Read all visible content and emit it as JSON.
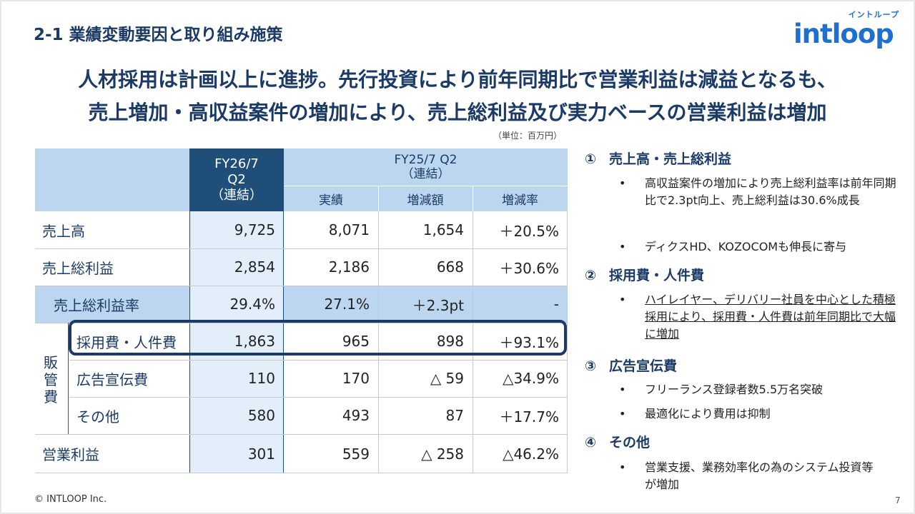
{
  "section_title": "2-1 業績変動要因と取り組み施策",
  "logo": {
    "kana": "イントループ",
    "word": "intloop",
    "color": "#1f6fd1"
  },
  "headline": {
    "line1": "人材採用は計画以上に進捗。先行投資により前年同期比で営業利益は減益となるも、",
    "line2": "売上増加・高収益案件の増加により、売上総利益及び実力ベースの営業利益は増加"
  },
  "unit_note": "（単位：百万円）",
  "table": {
    "fy26_header": {
      "line1": "FY26/7",
      "line2": "Q2",
      "line3": "（連結）"
    },
    "fy25_header": {
      "line1": "FY25/7 Q2",
      "line2": "（連結）"
    },
    "sub_headers": [
      "実績",
      "増減額",
      "増減率"
    ],
    "sga_group_label": "販管費",
    "rows": [
      {
        "label": "売上高",
        "fy26": "9,725",
        "actual": "8,071",
        "diff": "1,654",
        "rate": "＋20.5%"
      },
      {
        "label": "売上総利益",
        "fy26": "2,854",
        "actual": "2,186",
        "diff": "668",
        "rate": "＋30.6%"
      },
      {
        "label": "売上総利益率",
        "fy26": "29.4%",
        "actual": "27.1%",
        "diff": "＋2.3pt",
        "rate": "-"
      },
      {
        "label": "採用費・人件費",
        "fy26": "1,863",
        "actual": "965",
        "diff": "898",
        "rate": "＋93.1%"
      },
      {
        "label": "広告宣伝費",
        "fy26": "110",
        "actual": "170",
        "diff": "△ 59",
        "rate": "△34.9%"
      },
      {
        "label": "その他",
        "fy26": "580",
        "actual": "493",
        "diff": "87",
        "rate": "＋17.7%"
      },
      {
        "label": "営業利益",
        "fy26": "301",
        "actual": "559",
        "diff": "△ 258",
        "rate": "△46.2%"
      }
    ]
  },
  "notes": [
    {
      "mark": "①",
      "title": "売上高・売上総利益",
      "bullets": [
        {
          "text": "高収益案件の増加により売上総利益率は前年同期比で2.3pt向上、売上総利益は30.6%成長"
        },
        {
          "text": "ディクスHD、KOZOCOMも伸長に寄与"
        }
      ]
    },
    {
      "mark": "②",
      "title": "採用費・人件費",
      "bullets": [
        {
          "text": "ハイレイヤー、デリバリー社員を中心とした積極採用により、採用費・人件費は前年同期比で大幅に増加"
        }
      ]
    },
    {
      "mark": "③",
      "title": "広告宣伝費",
      "bullets": [
        {
          "text": "フリーランス登録者数5.5万名突破"
        },
        {
          "text": "最適化により費用は抑制"
        }
      ]
    },
    {
      "mark": "④",
      "title": "その他",
      "bullets": [
        {
          "text": "営業支援、業務効率化の為のシステム投資等が増加"
        }
      ]
    }
  ],
  "bullet_char": "•",
  "footer": "© INTLOOP  Inc.",
  "page_number": "7"
}
